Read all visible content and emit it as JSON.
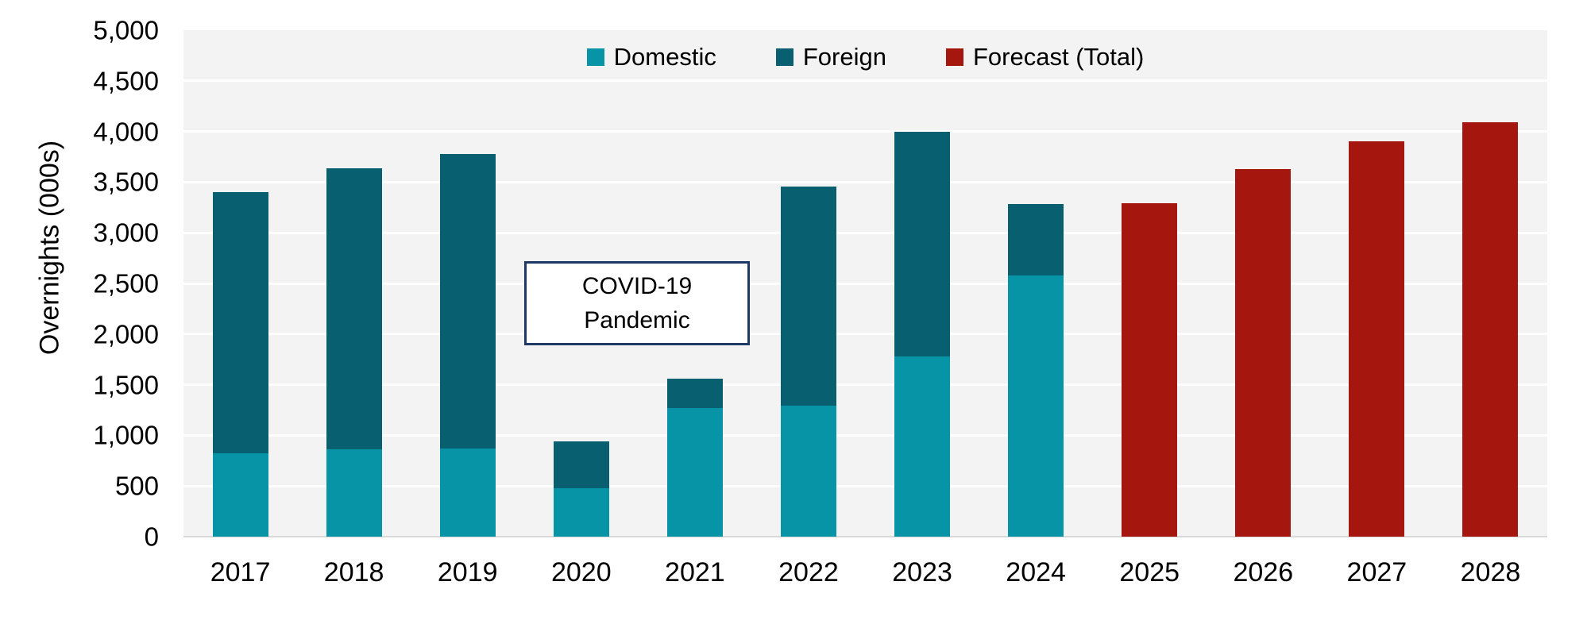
{
  "chart_data": {
    "type": "bar",
    "stacked": true,
    "ylabel": "Overnights (000s)",
    "categories": [
      "2017",
      "2018",
      "2019",
      "2020",
      "2021",
      "2022",
      "2023",
      "2024",
      "2025",
      "2026",
      "2027",
      "2028"
    ],
    "series": [
      {
        "name": "Domestic",
        "color": "#0894a7",
        "values": [
          820,
          860,
          870,
          480,
          1270,
          1290,
          1780,
          2580,
          null,
          null,
          null,
          null
        ]
      },
      {
        "name": "Foreign",
        "color": "#075f70",
        "values": [
          2580,
          2780,
          2910,
          460,
          290,
          2170,
          2220,
          700,
          null,
          null,
          null,
          null
        ]
      },
      {
        "name": "Forecast (Total)",
        "color": "#a5170e",
        "values": [
          null,
          null,
          null,
          null,
          null,
          null,
          null,
          null,
          3290,
          3630,
          3900,
          4090
        ]
      }
    ],
    "ylim": [
      0,
      5000
    ],
    "ytick_step": 500,
    "ytick_labels": [
      "0",
      "500",
      "1,000",
      "1,500",
      "2,000",
      "2,500",
      "3,000",
      "3,500",
      "4,000",
      "4,500",
      "5,000"
    ],
    "grid": true,
    "legend_position": "top-center",
    "annotation": {
      "line1": "COVID-19",
      "line2": "Pandemic",
      "near_categories": [
        "2020",
        "2021"
      ]
    },
    "colors": {
      "plot_background": "#f3f3f3",
      "gridline": "#ffffff",
      "axis_line": "#d9d9d9",
      "annotation_border": "#1f3864",
      "text": "#000000"
    }
  }
}
